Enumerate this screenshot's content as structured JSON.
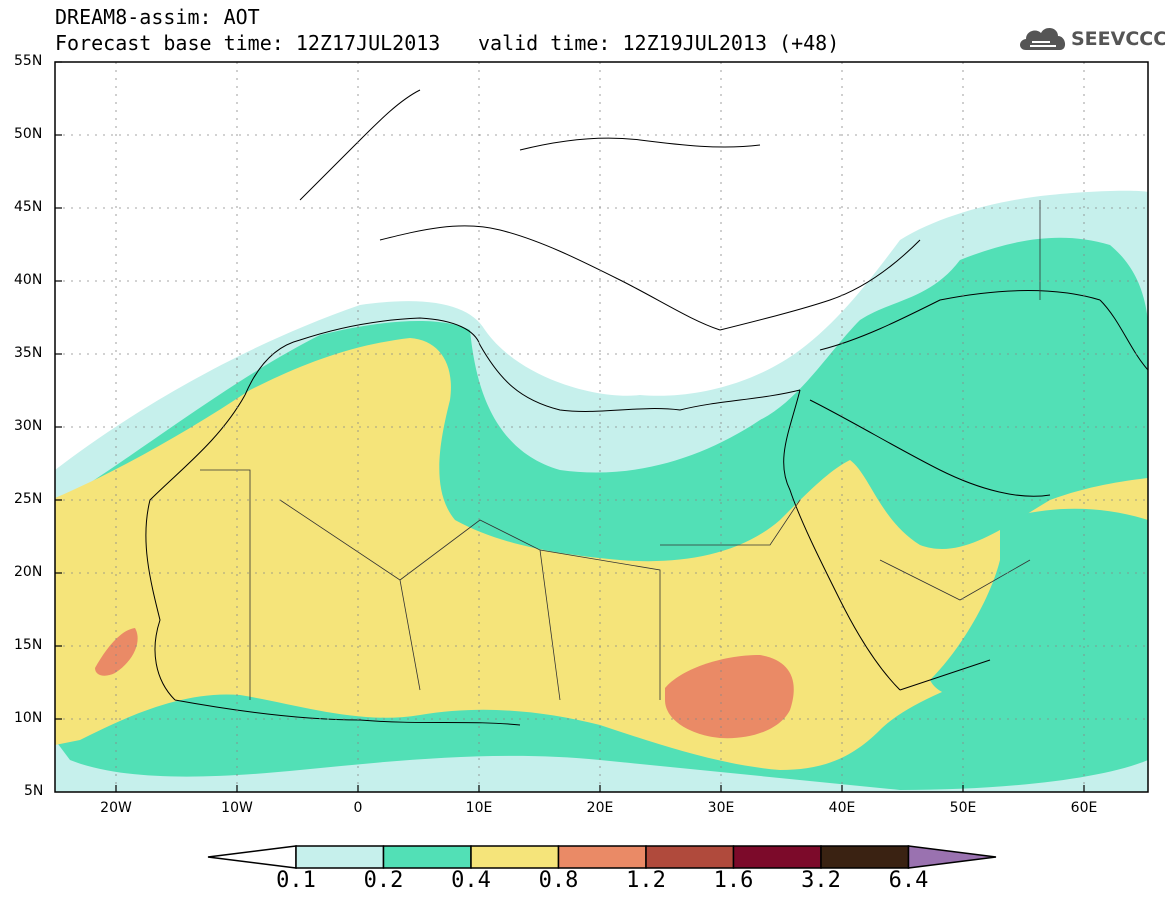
{
  "header": {
    "title": "DREAM8-assim: AOT",
    "base_time": "Forecast base time: 12Z17JUL2013",
    "valid_time": "valid time: 12Z19JUL2013 (+48)",
    "logo_text": "SEEVCCC"
  },
  "axes": {
    "lat_labels": [
      "55N",
      "50N",
      "45N",
      "40N",
      "35N",
      "30N",
      "25N",
      "20N",
      "15N",
      "10N",
      "5N"
    ],
    "lon_labels": [
      "20W",
      "10W",
      "0",
      "10E",
      "20E",
      "30E",
      "40E",
      "50E",
      "60E"
    ]
  },
  "legend": {
    "levels": [
      "0.1",
      "0.2",
      "0.4",
      "0.8",
      "1.2",
      "1.6",
      "3.2",
      "6.4"
    ],
    "colors": {
      "under": "#ffffff",
      "c1": "#c6f0ec",
      "c2": "#52e0b6",
      "c3": "#f5e47a",
      "c4": "#ea8a66",
      "c5": "#b04a3c",
      "c6": "#7c0a2a",
      "c7": "#3a2212",
      "over": "#9a72b0"
    }
  }
}
